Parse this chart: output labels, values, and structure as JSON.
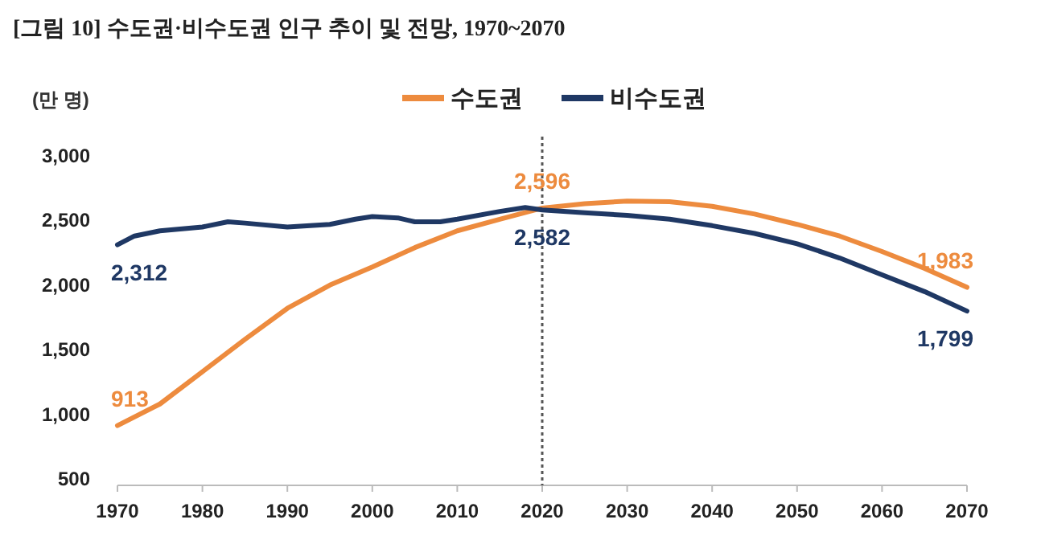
{
  "chart_data": {
    "type": "line",
    "title": "[그림 10] 수도권·비수도권 인구 추이 및 전망, 1970~2070",
    "ylabel": "(만 명)",
    "legend": "top",
    "xlim": [
      1970,
      2070
    ],
    "xticks": [
      1970,
      1980,
      1990,
      2000,
      2010,
      2020,
      2030,
      2040,
      2050,
      2060,
      2070
    ],
    "ylim": [
      500,
      3000
    ],
    "yticks": [
      {
        "value": 500,
        "label": "500"
      },
      {
        "value": 1000,
        "label": "1,000"
      },
      {
        "value": 1500,
        "label": "1,500"
      },
      {
        "value": 2000,
        "label": "2,000"
      },
      {
        "value": 2500,
        "label": "2,500"
      },
      {
        "value": 3000,
        "label": "3,000"
      }
    ],
    "ref_lines": [
      {
        "axis": "x",
        "value": 2020,
        "color": "#555555",
        "line_style": "dotted"
      }
    ],
    "series": [
      {
        "name": "수도권",
        "color": "#ed8b3e",
        "x": [
          1970,
          1975,
          1980,
          1985,
          1990,
          1995,
          2000,
          2005,
          2010,
          2015,
          2020,
          2025,
          2030,
          2035,
          2040,
          2045,
          2050,
          2055,
          2060,
          2065,
          2070
        ],
        "values": [
          913,
          1080,
          1330,
          1580,
          1820,
          2000,
          2140,
          2290,
          2420,
          2510,
          2596,
          2630,
          2650,
          2645,
          2610,
          2550,
          2470,
          2380,
          2260,
          2130,
          1983
        ],
        "value_labels": [
          "913",
          null,
          null,
          null,
          null,
          null,
          null,
          null,
          null,
          null,
          "2,596",
          null,
          null,
          null,
          null,
          null,
          null,
          null,
          null,
          null,
          "1,983"
        ]
      },
      {
        "name": "비수도권",
        "color": "#1f3864",
        "x": [
          1970,
          1972,
          1975,
          1980,
          1983,
          1985,
          1990,
          1995,
          1998,
          2000,
          2003,
          2005,
          2008,
          2010,
          2015,
          2018,
          2020,
          2025,
          2030,
          2035,
          2040,
          2045,
          2050,
          2055,
          2060,
          2065,
          2070
        ],
        "values": [
          2312,
          2380,
          2420,
          2450,
          2490,
          2480,
          2450,
          2470,
          2510,
          2530,
          2520,
          2490,
          2490,
          2510,
          2570,
          2600,
          2582,
          2560,
          2540,
          2510,
          2460,
          2400,
          2320,
          2210,
          2080,
          1950,
          1799
        ],
        "value_labels": [
          "2,312",
          null,
          null,
          null,
          null,
          null,
          null,
          null,
          null,
          null,
          null,
          null,
          null,
          null,
          null,
          null,
          "2,582",
          null,
          null,
          null,
          null,
          null,
          null,
          null,
          null,
          null,
          "1,799"
        ]
      }
    ]
  }
}
